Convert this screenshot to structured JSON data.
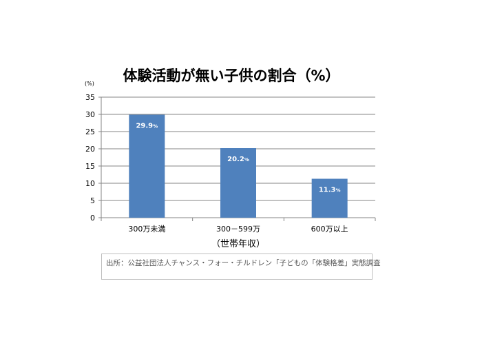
{
  "chart_data": {
    "type": "bar",
    "title": "体験活動が無い子供の割合（%）",
    "ylabel": "(%)",
    "xlabel": "（世帯年収）",
    "categories": [
      "300万未満",
      "300－599万",
      "600万以上"
    ],
    "values": [
      29.9,
      20.2,
      11.3
    ],
    "data_labels": [
      "29.9",
      "20.2",
      "11.3"
    ],
    "data_label_unit": "%",
    "ylim": [
      0,
      35
    ],
    "yticks": [
      "0",
      "5",
      "10",
      "15",
      "20",
      "25",
      "30",
      "35"
    ],
    "grid": true,
    "legend": "none",
    "bar_color": "#4f81bd",
    "grid_color": "#868686"
  },
  "source": "出所：公益社団法人チャンス・フォー・チルドレン「子どもの「体験格差」実態調査"
}
